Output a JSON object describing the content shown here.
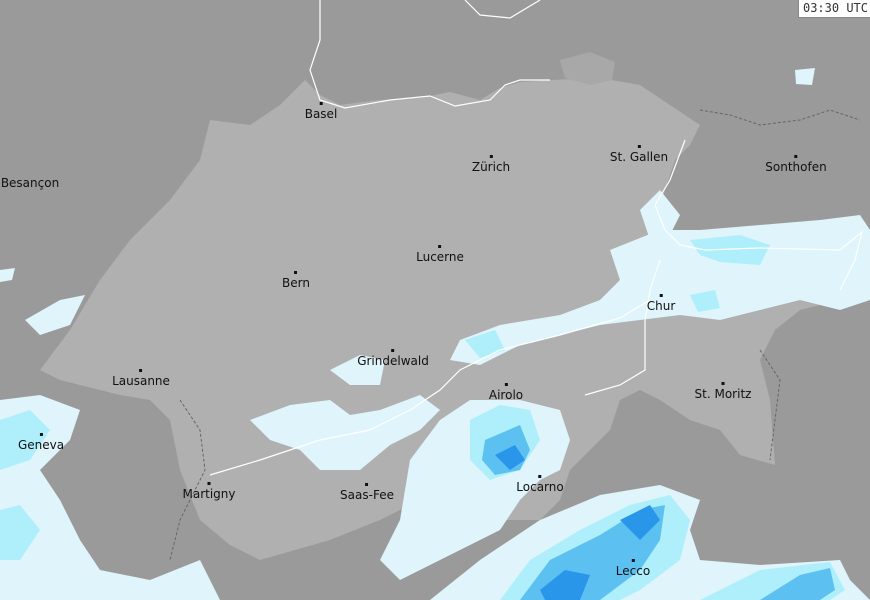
{
  "timestamp": "03:30 UTC",
  "colors": {
    "outside_land": "#9a9a9a",
    "switzerland": "#b0b0b0",
    "rain_light": "#dff4fb",
    "rain_moderate": "#aeeffb",
    "rain_heavy": "#5cc0f0",
    "rain_very_heavy": "#2a96ea",
    "border": "#ffffff"
  },
  "cities": [
    {
      "name": "Basel"
    },
    {
      "name": "Zürich"
    },
    {
      "name": "St. Gallen"
    },
    {
      "name": "Sonthofen"
    },
    {
      "name": "Besançon"
    },
    {
      "name": "Lucerne"
    },
    {
      "name": "Bern"
    },
    {
      "name": "Chur"
    },
    {
      "name": "Grindelwald"
    },
    {
      "name": "Lausanne"
    },
    {
      "name": "Airolo"
    },
    {
      "name": "St. Moritz"
    },
    {
      "name": "Geneva"
    },
    {
      "name": "Martigny"
    },
    {
      "name": "Saas-Fee"
    },
    {
      "name": "Locarno"
    },
    {
      "name": "Lecco"
    }
  ]
}
